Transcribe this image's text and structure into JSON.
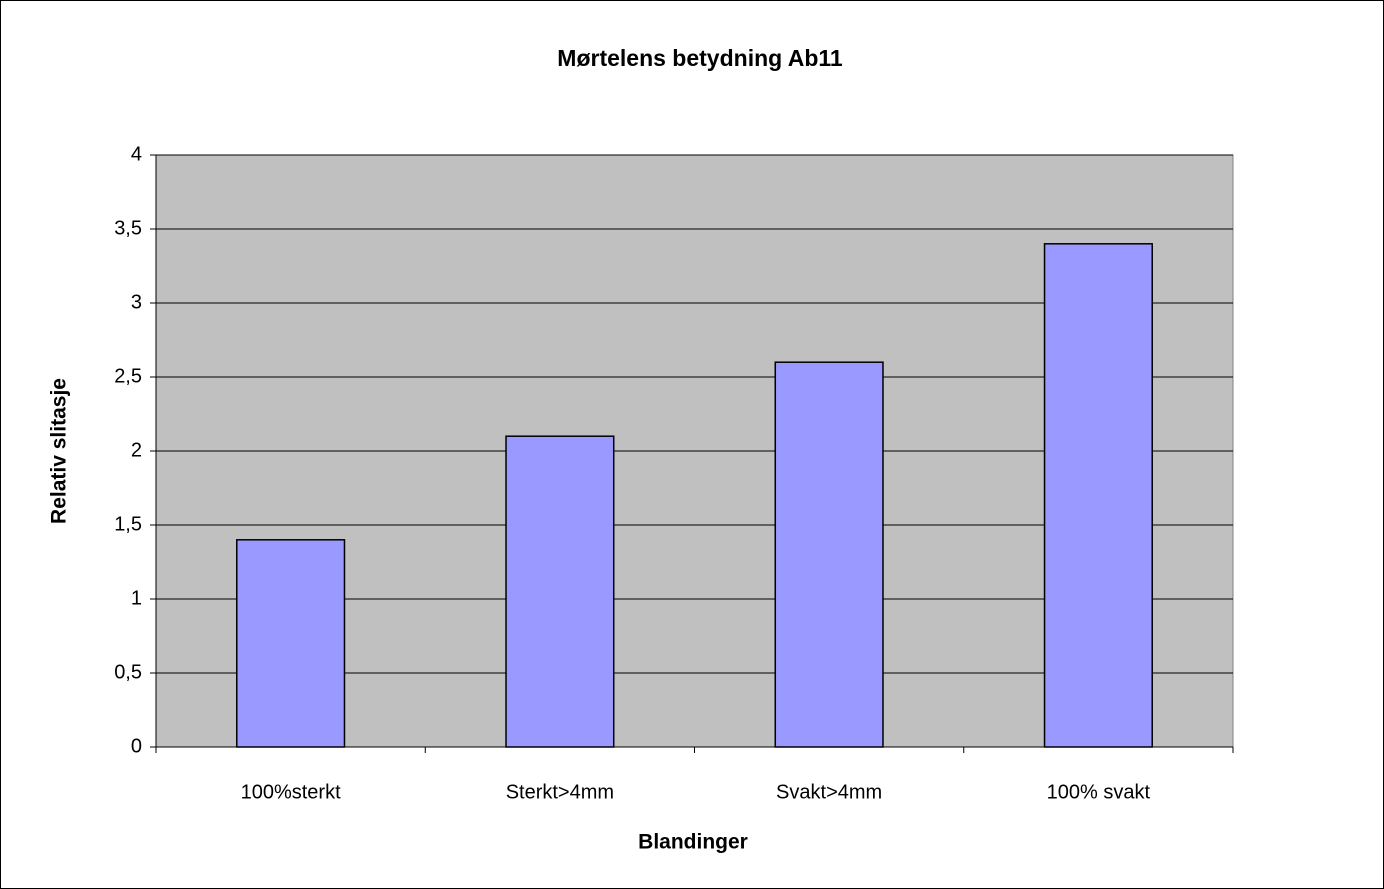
{
  "chart_data": {
    "type": "bar",
    "title": "Mørtelens betydning Ab11",
    "x_label": "Blandinger",
    "y_label": "Relativ slitasje",
    "categories": [
      "100%sterkt",
      "Sterkt>4mm",
      "Svakt>4mm",
      "100% svakt"
    ],
    "values": [
      1.4,
      2.1,
      2.6,
      3.4
    ],
    "color": "#9999ff",
    "ylim": [
      0,
      4
    ],
    "yticks": [
      0,
      {
        "value": 0.5,
        "label": "0,5"
      },
      1,
      {
        "value": 1.5,
        "label": "1,5"
      },
      2,
      {
        "value": 2.5,
        "label": "2,5"
      },
      3,
      {
        "value": 3.5,
        "label": "3,5"
      },
      4
    ],
    "grid": true
  }
}
